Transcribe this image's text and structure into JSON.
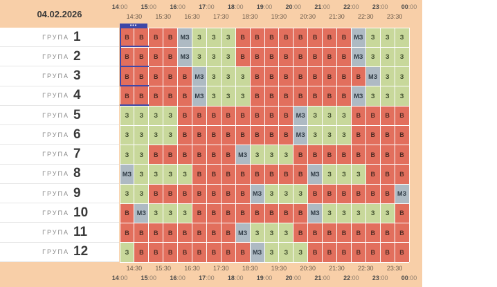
{
  "header": {
    "date": "04.02.2026"
  },
  "timeline": {
    "hours": [
      {
        "h": "14",
        "m": ":00"
      },
      {
        "h": "15",
        "m": ":00"
      },
      {
        "h": "16",
        "m": ":00"
      },
      {
        "h": "17",
        "m": ":00"
      },
      {
        "h": "18",
        "m": ":00"
      },
      {
        "h": "19",
        "m": ":00"
      },
      {
        "h": "20",
        "m": ":00"
      },
      {
        "h": "21",
        "m": ":00"
      },
      {
        "h": "22",
        "m": ":00"
      },
      {
        "h": "23",
        "m": ":00"
      },
      {
        "h": "00",
        "m": ":00"
      }
    ],
    "halves": [
      "14:30",
      "15:30",
      "16:30",
      "17:30",
      "18:30",
      "19:30",
      "20:30",
      "21:30",
      "22:30",
      "23:30"
    ]
  },
  "now_marker": {
    "label": "•••",
    "time": "14:00",
    "color": "#3d47a8"
  },
  "legend_colors": {
    "В": "#e26f5d",
    "З": "#c8d89b",
    "МЗ": "#aebac3"
  },
  "group_word": "ГРУПА",
  "groups": [
    {
      "number": "1",
      "slots": [
        "В",
        "В",
        "В",
        "В",
        "МЗ",
        "З",
        "З",
        "З",
        "В",
        "В",
        "В",
        "В",
        "В",
        "В",
        "В",
        "В",
        "МЗ",
        "З",
        "З",
        "З"
      ]
    },
    {
      "number": "2",
      "slots": [
        "В",
        "В",
        "В",
        "В",
        "МЗ",
        "З",
        "З",
        "З",
        "В",
        "В",
        "В",
        "В",
        "В",
        "В",
        "В",
        "В",
        "МЗ",
        "З",
        "З",
        "З"
      ]
    },
    {
      "number": "3",
      "slots": [
        "В",
        "В",
        "В",
        "В",
        "В",
        "МЗ",
        "З",
        "З",
        "З",
        "В",
        "В",
        "В",
        "В",
        "В",
        "В",
        "В",
        "В",
        "МЗ",
        "З",
        "З"
      ]
    },
    {
      "number": "4",
      "slots": [
        "В",
        "В",
        "В",
        "В",
        "В",
        "МЗ",
        "З",
        "З",
        "З",
        "В",
        "В",
        "В",
        "В",
        "В",
        "В",
        "В",
        "МЗ",
        "З",
        "З",
        "З"
      ]
    },
    {
      "number": "5",
      "slots": [
        "З",
        "З",
        "З",
        "З",
        "В",
        "В",
        "В",
        "В",
        "В",
        "В",
        "В",
        "В",
        "МЗ",
        "З",
        "З",
        "З",
        "В",
        "В",
        "В",
        "В"
      ]
    },
    {
      "number": "6",
      "slots": [
        "З",
        "З",
        "З",
        "З",
        "В",
        "В",
        "В",
        "В",
        "В",
        "В",
        "В",
        "В",
        "МЗ",
        "З",
        "З",
        "З",
        "В",
        "В",
        "В",
        "В"
      ]
    },
    {
      "number": "7",
      "slots": [
        "З",
        "З",
        "В",
        "В",
        "В",
        "В",
        "В",
        "В",
        "МЗ",
        "З",
        "З",
        "З",
        "В",
        "В",
        "В",
        "В",
        "В",
        "В",
        "В",
        "В"
      ]
    },
    {
      "number": "8",
      "slots": [
        "МЗ",
        "З",
        "З",
        "З",
        "З",
        "В",
        "В",
        "В",
        "В",
        "В",
        "В",
        "В",
        "В",
        "МЗ",
        "З",
        "З",
        "З",
        "В",
        "В",
        "В"
      ]
    },
    {
      "number": "9",
      "slots": [
        "З",
        "З",
        "В",
        "В",
        "В",
        "В",
        "В",
        "В",
        "В",
        "МЗ",
        "З",
        "З",
        "З",
        "В",
        "В",
        "В",
        "В",
        "В",
        "В",
        "МЗ"
      ]
    },
    {
      "number": "10",
      "slots": [
        "В",
        "МЗ",
        "З",
        "З",
        "З",
        "В",
        "В",
        "В",
        "В",
        "В",
        "В",
        "В",
        "В",
        "МЗ",
        "З",
        "З",
        "З",
        "З",
        "З",
        "В"
      ]
    },
    {
      "number": "11",
      "slots": [
        "В",
        "В",
        "В",
        "В",
        "В",
        "В",
        "В",
        "В",
        "МЗ",
        "З",
        "З",
        "З",
        "В",
        "В",
        "В",
        "В",
        "В",
        "В",
        "В",
        "В"
      ]
    },
    {
      "number": "12",
      "slots": [
        "З",
        "В",
        "В",
        "В",
        "В",
        "В",
        "В",
        "В",
        "В",
        "МЗ",
        "З",
        "З",
        "З",
        "В",
        "В",
        "В",
        "В",
        "В",
        "В",
        "В"
      ]
    }
  ]
}
